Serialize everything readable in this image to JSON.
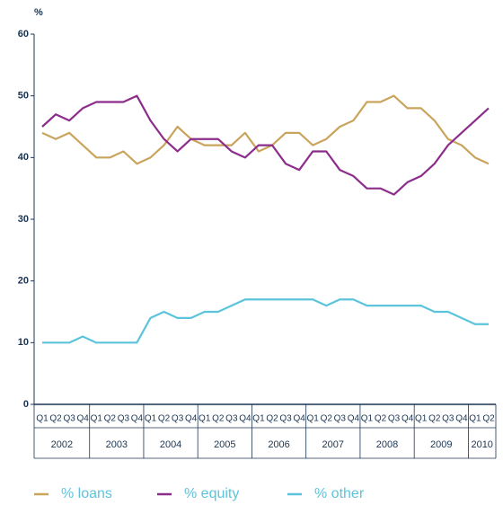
{
  "chart_data": {
    "type": "line",
    "y_unit": "%",
    "year_groups": [
      {
        "label": "2002",
        "quarters": [
          "Q1",
          "Q2",
          "Q3",
          "Q4"
        ]
      },
      {
        "label": "2003",
        "quarters": [
          "Q1",
          "Q2",
          "Q3",
          "Q4"
        ]
      },
      {
        "label": "2004",
        "quarters": [
          "Q1",
          "Q2",
          "Q3",
          "Q4"
        ]
      },
      {
        "label": "2005",
        "quarters": [
          "Q1",
          "Q2",
          "Q3",
          "Q4"
        ]
      },
      {
        "label": "2006",
        "quarters": [
          "Q1",
          "Q2",
          "Q3",
          "Q4"
        ]
      },
      {
        "label": "2007",
        "quarters": [
          "Q1",
          "Q2",
          "Q3",
          "Q4"
        ]
      },
      {
        "label": "2008",
        "quarters": [
          "Q1",
          "Q2",
          "Q3",
          "Q4"
        ]
      },
      {
        "label": "2009",
        "quarters": [
          "Q1",
          "Q2",
          "Q3",
          "Q4"
        ]
      },
      {
        "label": "2010",
        "quarters": [
          "Q1",
          "Q2"
        ]
      }
    ],
    "series": [
      {
        "name": "% loans",
        "color": "#c9a45c",
        "values": [
          44,
          43,
          44,
          42,
          40,
          40,
          41,
          39,
          40,
          42,
          45,
          43,
          42,
          42,
          42,
          44,
          41,
          42,
          44,
          44,
          42,
          43,
          45,
          46,
          49,
          49,
          50,
          48,
          48,
          46,
          43,
          42,
          40,
          39
        ]
      },
      {
        "name": "% equity",
        "color": "#8c2d8c",
        "values": [
          45,
          47,
          46,
          48,
          49,
          49,
          49,
          50,
          46,
          43,
          41,
          43,
          43,
          43,
          41,
          40,
          42,
          42,
          39,
          38,
          41,
          41,
          38,
          37,
          35,
          35,
          34,
          36,
          37,
          39,
          42,
          44,
          46,
          48
        ]
      },
      {
        "name": "% other",
        "color": "#5bc4dc",
        "values": [
          10,
          10,
          10,
          11,
          10,
          10,
          10,
          10,
          14,
          15,
          14,
          14,
          15,
          15,
          16,
          17,
          17,
          17,
          17,
          17,
          17,
          16,
          17,
          17,
          16,
          16,
          16,
          16,
          16,
          15,
          15,
          14,
          13,
          13
        ]
      }
    ],
    "ylim": [
      0,
      60
    ],
    "yticks": [
      0,
      10,
      20,
      30,
      40,
      50,
      60
    ],
    "legend": "bottom"
  }
}
